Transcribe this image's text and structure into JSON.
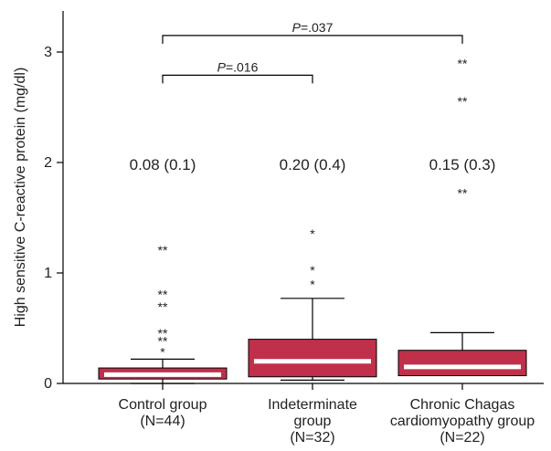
{
  "chart_data": {
    "type": "box",
    "title": "",
    "xlabel": "",
    "ylabel": "High sensitive C-reactive protein (mg/dl)",
    "ylim": [
      0,
      3.3
    ],
    "yticks": [
      0,
      1,
      2,
      3
    ],
    "grid": false,
    "legend": "none",
    "box_color": "#c0304a",
    "median_color": "#ffffff",
    "categories": [
      {
        "id": "control",
        "label_lines": [
          "Control group",
          "(N=44)"
        ]
      },
      {
        "id": "indeterminate",
        "label_lines": [
          "Indeterminate",
          "group",
          "(N=32)"
        ]
      },
      {
        "id": "chagas",
        "label_lines": [
          "Chronic Chagas",
          "cardiomyopathy group",
          "(N=22)"
        ]
      }
    ],
    "boxes": [
      {
        "category": "control",
        "whisker_low": 0.0,
        "q1": 0.04,
        "median": 0.08,
        "q3": 0.14,
        "whisker_high": 0.22,
        "summary": "0.08 (0.1)",
        "outliers": [
          {
            "y": 1.23,
            "marker": "**"
          },
          {
            "y": 0.83,
            "marker": "**"
          },
          {
            "y": 0.72,
            "marker": "**"
          },
          {
            "y": 0.48,
            "marker": "**"
          },
          {
            "y": 0.41,
            "marker": "**"
          },
          {
            "y": 0.31,
            "marker": "*"
          }
        ]
      },
      {
        "category": "indeterminate",
        "whisker_low": 0.03,
        "q1": 0.06,
        "median": 0.2,
        "q3": 0.4,
        "whisker_high": 0.77,
        "summary": "0.20 (0.4)",
        "outliers": [
          {
            "y": 1.38,
            "marker": "*"
          },
          {
            "y": 1.05,
            "marker": "*"
          },
          {
            "y": 0.92,
            "marker": "*"
          }
        ]
      },
      {
        "category": "chagas",
        "whisker_low": 0.07,
        "q1": 0.07,
        "median": 0.15,
        "q3": 0.3,
        "whisker_high": 0.46,
        "summary": "0.15 (0.3)",
        "outliers": [
          {
            "y": 2.92,
            "marker": "**"
          },
          {
            "y": 2.58,
            "marker": "**"
          },
          {
            "y": 1.75,
            "marker": "**"
          }
        ]
      }
    ],
    "comparisons": [
      {
        "from": "control",
        "to": "indeterminate",
        "y": 2.79,
        "label_prefix": "P",
        "label_value": "=.016"
      },
      {
        "from": "control",
        "to": "chagas",
        "y": 3.15,
        "label_prefix": "P",
        "label_value": "=.037"
      }
    ]
  }
}
